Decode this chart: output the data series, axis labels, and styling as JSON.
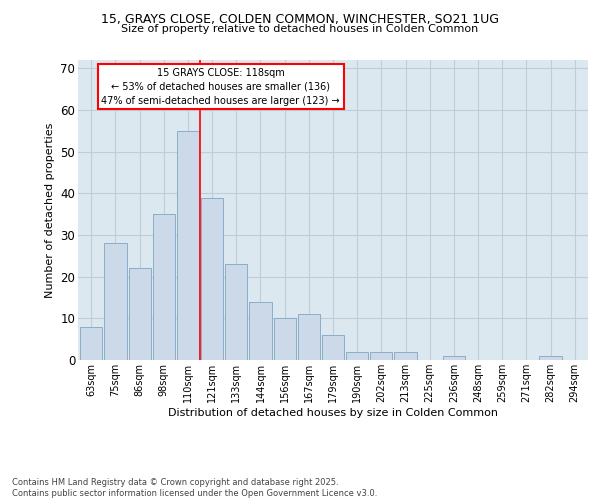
{
  "title1": "15, GRAYS CLOSE, COLDEN COMMON, WINCHESTER, SO21 1UG",
  "title2": "Size of property relative to detached houses in Colden Common",
  "xlabel": "Distribution of detached houses by size in Colden Common",
  "ylabel": "Number of detached properties",
  "bar_labels": [
    "63sqm",
    "75sqm",
    "86sqm",
    "98sqm",
    "110sqm",
    "121sqm",
    "133sqm",
    "144sqm",
    "156sqm",
    "167sqm",
    "179sqm",
    "190sqm",
    "202sqm",
    "213sqm",
    "225sqm",
    "236sqm",
    "248sqm",
    "259sqm",
    "271sqm",
    "282sqm",
    "294sqm"
  ],
  "bar_values": [
    8,
    28,
    22,
    35,
    55,
    39,
    23,
    14,
    10,
    11,
    6,
    2,
    2,
    2,
    0,
    1,
    0,
    0,
    0,
    1,
    0
  ],
  "bar_color": "#ccd9e8",
  "bar_edge_color": "#8aadc8",
  "property_label": "15 GRAYS CLOSE: 118sqm",
  "annotation_line1": "← 53% of detached houses are smaller (136)",
  "annotation_line2": "47% of semi-detached houses are larger (123) →",
  "annotation_box_color": "white",
  "annotation_box_edge": "red",
  "vline_color": "red",
  "ylim": [
    0,
    72
  ],
  "yticks": [
    0,
    10,
    20,
    30,
    40,
    50,
    60,
    70
  ],
  "grid_color": "#c0ccd8",
  "background_color": "#dce8f0",
  "footer1": "Contains HM Land Registry data © Crown copyright and database right 2025.",
  "footer2": "Contains public sector information licensed under the Open Government Licence v3.0."
}
